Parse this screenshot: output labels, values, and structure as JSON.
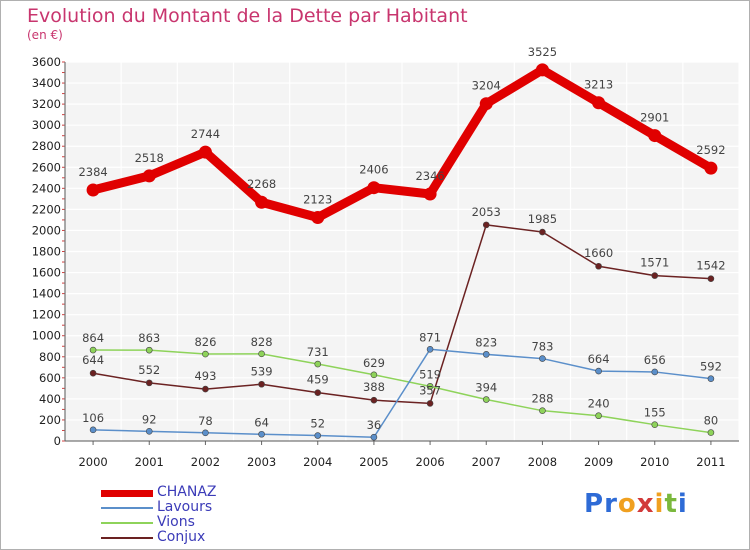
{
  "header": {
    "title": "Evolution du Montant de la Dette par Habitant",
    "subtitle": "(en €)"
  },
  "logo": {
    "text": "Proxiti",
    "colors": [
      "#2e6bd6",
      "#2e6bd6",
      "#f0a020",
      "#d23a3a",
      "#f0a020",
      "#7ab83c",
      "#2e6bd6"
    ]
  },
  "chart_data": {
    "type": "line",
    "categories": [
      "2000",
      "2001",
      "2002",
      "2003",
      "2004",
      "2005",
      "2006",
      "2007",
      "2008",
      "2009",
      "2010",
      "2011"
    ],
    "ylim": [
      0,
      3600
    ],
    "yticks": [
      "0",
      "200",
      "400",
      "600",
      "800",
      "1000",
      "1200",
      "1400",
      "1600",
      "1800",
      "2000",
      "2200",
      "2400",
      "2600",
      "2800",
      "3000",
      "3200",
      "3400",
      "3600"
    ],
    "grid": true,
    "legend_position": "bottom-left",
    "series": [
      {
        "name": "CHANAZ",
        "color": "#e00000",
        "values": [
          2384,
          2518,
          2744,
          2268,
          2123,
          2406,
          2346,
          3204,
          3525,
          3213,
          2901,
          2592
        ],
        "labels": [
          "2384",
          "2518",
          "2744",
          "2268",
          "2123",
          "2406",
          "2346",
          "3204",
          "3525",
          "3213",
          "2901",
          "2592"
        ]
      },
      {
        "name": "Lavours",
        "color": "#5b8fca",
        "values": [
          106,
          92,
          78,
          64,
          52,
          36,
          871,
          823,
          783,
          664,
          656,
          592
        ],
        "labels": [
          "106",
          "92",
          "78",
          "64",
          "52",
          "36",
          "871",
          "823",
          "783",
          "664",
          "656",
          "592"
        ]
      },
      {
        "name": "Vions",
        "color": "#8ed35a",
        "values": [
          864,
          863,
          826,
          828,
          731,
          629,
          519,
          394,
          288,
          240,
          155,
          80
        ],
        "labels": [
          "864",
          "863",
          "826",
          "828",
          "731",
          "629",
          "519",
          "394",
          "288",
          "240",
          "155",
          "80"
        ]
      },
      {
        "name": "Conjux",
        "color": "#6b2222",
        "values": [
          644,
          552,
          493,
          539,
          459,
          388,
          357,
          2053,
          1985,
          1660,
          1571,
          1542
        ],
        "labels": [
          "644",
          "552",
          "493",
          "539",
          "459",
          "388",
          "357",
          "2053",
          "1985",
          "1660",
          "1571",
          "1542"
        ]
      }
    ]
  }
}
